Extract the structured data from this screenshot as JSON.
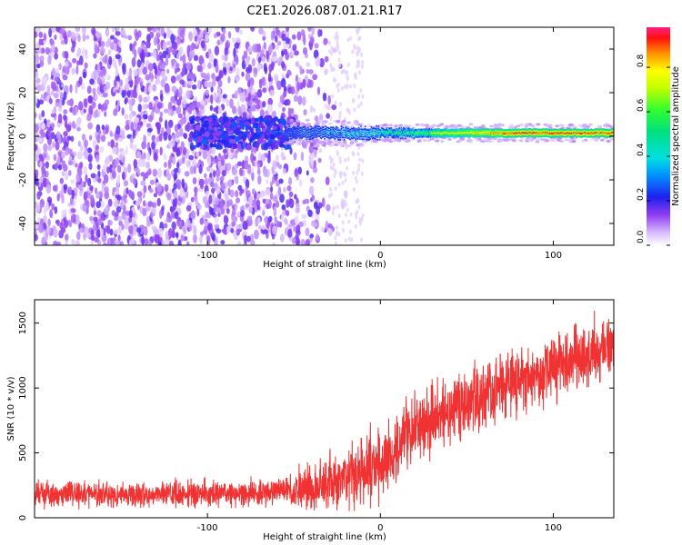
{
  "title": "C2E1.2026.087.01.21.R17",
  "chart_data": [
    {
      "type": "heatmap",
      "xlabel": "Height of straight line (km)",
      "ylabel": "Frequency (Hz)",
      "xlim": [
        -200,
        135
      ],
      "ylim": [
        -50,
        50
      ],
      "xticks": [
        -100,
        0,
        100
      ],
      "yticks": [
        -40,
        -20,
        0,
        20,
        40
      ],
      "xtick_labels": [
        "-100",
        "0",
        "100"
      ],
      "ytick_labels": [
        "-40",
        "-20",
        "0",
        "20",
        "40"
      ],
      "colorbar": {
        "label": "Normalized spectral amplitude",
        "range": [
          0.0,
          0.98
        ],
        "ticks": [
          0.0,
          0.2,
          0.4,
          0.6,
          0.8
        ],
        "tick_labels": [
          "0.0",
          "0.2",
          "0.4",
          "0.6",
          "0.8"
        ]
      },
      "features": {
        "noise_region_x": [
          -200,
          -30
        ],
        "carrier_frequency_hz": 1.5,
        "carrier_band_x": [
          -55,
          135
        ],
        "carrier_peak_amplitude": 0.95
      }
    },
    {
      "type": "line",
      "xlabel": "Height of straight line (km)",
      "ylabel": "SNR (10 * v/v)",
      "xlim": [
        -200,
        135
      ],
      "ylim": [
        0,
        1680
      ],
      "xticks": [
        -100,
        0,
        100
      ],
      "yticks": [
        0,
        500,
        1000,
        1500
      ],
      "xtick_labels": [
        "-100",
        "0",
        "100"
      ],
      "ytick_labels": [
        "0",
        "500",
        "1000",
        "1500"
      ],
      "color": "#f03232",
      "trend": {
        "x": [
          -200,
          -150,
          -100,
          -50,
          -30,
          -10,
          0,
          20,
          50,
          80,
          100,
          135
        ],
        "y": [
          180,
          180,
          185,
          200,
          260,
          350,
          420,
          700,
          900,
          1050,
          1150,
          1330
        ]
      },
      "noise_spread": {
        "x": [
          -200,
          -50,
          -30,
          0,
          50,
          135
        ],
        "y": [
          60,
          70,
          140,
          180,
          170,
          150
        ]
      }
    }
  ]
}
